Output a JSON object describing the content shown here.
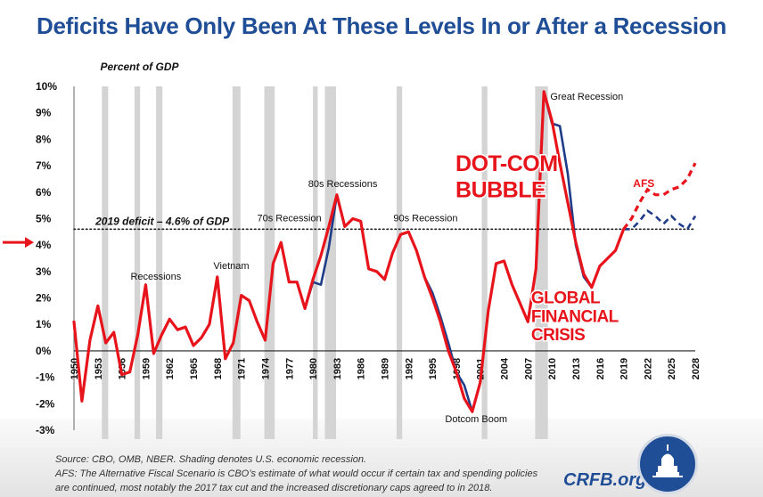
{
  "title": "Deficits Have Only Been At These Levels In or After a Recession",
  "footer": {
    "source_line": "Source: CBO, OMB, NBER. Shading denotes U.S. economic recession.",
    "afs_line_1": "AFS: The Alternative Fiscal Scenario is CBO’s estimate of what would occur if certain tax and spending policies",
    "afs_line_2": "are continued, most notably the 2017 tax cut and the increased discretionary caps agreed to in 2018.",
    "brand": "CRFB.org"
  },
  "colors": {
    "title": "#1f4e96",
    "red": "#e8141b",
    "navy": "#1f3c88",
    "shade": "#d4d4d4",
    "arrow": "#e8141b"
  },
  "chart_data": {
    "type": "line",
    "ylabel": "Percent of GDP",
    "ylim": [
      -3,
      10
    ],
    "xlim": [
      1950,
      2028
    ],
    "y_ticks": [
      -3,
      -2,
      -1,
      0,
      1,
      2,
      3,
      4,
      5,
      6,
      7,
      8,
      9,
      10
    ],
    "y_tick_labels": [
      "-3%",
      "-2%",
      "-1%",
      "0%",
      "1%",
      "2%",
      "3%",
      "4%",
      "5%",
      "6%",
      "7%",
      "8%",
      "9%",
      "10%"
    ],
    "x_ticks": [
      1950,
      1953,
      1956,
      1959,
      1962,
      1965,
      1968,
      1971,
      1974,
      1977,
      1980,
      1983,
      1986,
      1989,
      1992,
      1995,
      1998,
      2001,
      2004,
      2007,
      2010,
      2013,
      2016,
      2019,
      2022,
      2025,
      2028
    ],
    "grid": false,
    "recessions": [
      [
        1953.5,
        1954.3
      ],
      [
        1957.6,
        1958.3
      ],
      [
        1960.3,
        1961.1
      ],
      [
        1969.9,
        1970.9
      ],
      [
        1973.9,
        1975.2
      ],
      [
        1980.0,
        1980.6
      ],
      [
        1981.5,
        1982.9
      ],
      [
        1990.5,
        1991.2
      ],
      [
        2001.2,
        2001.9
      ],
      [
        2007.9,
        2009.5
      ]
    ],
    "reference_line": {
      "y": 4.6,
      "label": "2019 deficit – 4.6% of GDP"
    },
    "series": [
      {
        "name": "",
        "color": "#1f3c88",
        "x": [
          1950,
          1951,
          1952,
          1953,
          1954,
          1955,
          1956,
          1957,
          1958,
          1959,
          1960,
          1961,
          1962,
          1963,
          1964,
          1965,
          1966,
          1967,
          1968,
          1969,
          1970,
          1971,
          1972,
          1973,
          1974,
          1975,
          1976,
          1977,
          1978,
          1979,
          1980,
          1981,
          1982,
          1983,
          1984,
          1985,
          1986,
          1987,
          1988,
          1989,
          1990,
          1991,
          1992,
          1993,
          1994,
          1995,
          1996,
          1997,
          1998,
          1999,
          2000,
          2001,
          2002,
          2003,
          2004,
          2005,
          2006,
          2007,
          2008,
          2009,
          2010,
          2011,
          2012,
          2013,
          2014,
          2015,
          2016,
          2017,
          2018,
          2019,
          2020,
          2021,
          2022,
          2023,
          2024,
          2025,
          2026,
          2027,
          2028
        ],
        "values": [
          1.1,
          -1.9,
          0.4,
          1.7,
          0.3,
          0.7,
          -0.9,
          -0.8,
          0.6,
          2.5,
          -0.1,
          0.6,
          1.2,
          0.8,
          0.9,
          0.2,
          0.5,
          1.0,
          2.8,
          -0.3,
          0.3,
          2.1,
          1.9,
          1.1,
          0.4,
          3.3,
          4.1,
          2.6,
          2.6,
          1.6,
          2.6,
          2.5,
          3.9,
          5.9,
          4.7,
          5.0,
          4.9,
          3.1,
          3.0,
          2.7,
          3.7,
          4.4,
          4.5,
          3.8,
          2.8,
          2.2,
          1.3,
          0.3,
          -0.8,
          -1.3,
          -2.3,
          -1.2,
          1.5,
          3.3,
          3.4,
          2.5,
          1.8,
          1.1,
          3.1,
          9.8,
          8.6,
          8.5,
          6.7,
          4.0,
          2.8,
          2.4,
          3.2,
          3.5,
          3.8,
          4.6,
          4.6,
          4.9,
          5.3,
          5.1,
          4.8,
          5.1,
          4.8,
          4.6,
          5.1
        ],
        "projection_from": 2019
      },
      {
        "name": "AFS",
        "color": "#e8141b",
        "x": [
          1950,
          1951,
          1952,
          1953,
          1954,
          1955,
          1956,
          1957,
          1958,
          1959,
          1960,
          1961,
          1962,
          1963,
          1964,
          1965,
          1966,
          1967,
          1968,
          1969,
          1970,
          1971,
          1972,
          1973,
          1974,
          1975,
          1976,
          1977,
          1978,
          1979,
          1980,
          1981,
          1982,
          1983,
          1984,
          1985,
          1986,
          1987,
          1988,
          1989,
          1990,
          1991,
          1992,
          1993,
          1994,
          1995,
          1996,
          1997,
          1998,
          1999,
          2000,
          2001,
          2002,
          2003,
          2004,
          2005,
          2006,
          2007,
          2008,
          2009,
          2010,
          2011,
          2012,
          2013,
          2014,
          2015,
          2016,
          2017,
          2018,
          2019,
          2020,
          2021,
          2022,
          2023,
          2024,
          2025,
          2026,
          2027,
          2028
        ],
        "values": [
          1.1,
          -1.9,
          0.4,
          1.7,
          0.3,
          0.7,
          -0.9,
          -0.8,
          0.6,
          2.5,
          -0.1,
          0.6,
          1.2,
          0.8,
          0.9,
          0.2,
          0.5,
          1.0,
          2.8,
          -0.3,
          0.3,
          2.1,
          1.9,
          1.1,
          0.4,
          3.3,
          4.1,
          2.6,
          2.6,
          1.6,
          2.7,
          3.6,
          4.7,
          5.9,
          4.7,
          5.0,
          4.9,
          3.1,
          3.0,
          2.7,
          3.7,
          4.4,
          4.5,
          3.8,
          2.8,
          2.0,
          1.1,
          0.0,
          -0.8,
          -1.8,
          -2.3,
          -1.2,
          1.5,
          3.3,
          3.4,
          2.5,
          1.8,
          1.1,
          3.1,
          9.8,
          8.7,
          7.1,
          5.6,
          4.1,
          2.9,
          2.4,
          3.2,
          3.5,
          3.8,
          4.6,
          5.0,
          5.6,
          6.1,
          5.9,
          5.9,
          6.1,
          6.2,
          6.5,
          7.1
        ],
        "projection_from": 2019
      }
    ],
    "annotations": [
      {
        "text": "Percent of GDP",
        "x": 1953.3,
        "y": 10.6,
        "style": "axis-title"
      },
      {
        "text": "Recessions",
        "x": 1957.1,
        "y": 2.7,
        "style": "small"
      },
      {
        "text": "Vietnam",
        "x": 1967.5,
        "y": 3.1,
        "style": "small"
      },
      {
        "text": "70s Recession",
        "x": 1973.0,
        "y": 4.9,
        "style": "small"
      },
      {
        "text": "80s Recessions",
        "x": 1979.4,
        "y": 6.2,
        "style": "small"
      },
      {
        "text": "90s Recession",
        "x": 1990.1,
        "y": 4.9,
        "style": "small"
      },
      {
        "text": "Dotcom Boom",
        "x": 1996.6,
        "y": -2.7,
        "style": "small"
      },
      {
        "text": "Great Recession",
        "x": 2009.8,
        "y": 9.5,
        "style": "small"
      },
      {
        "text": "AFS",
        "x": 2020.2,
        "y": 6.2,
        "style": "series-label"
      },
      {
        "text": "DOT-COM",
        "x": 1997.9,
        "y": 6.8,
        "style": "callout"
      },
      {
        "text": "BUBBLE",
        "x": 1997.9,
        "y": 5.8,
        "style": "callout"
      },
      {
        "text": "GLOBAL",
        "x": 2007.4,
        "y": 1.8,
        "style": "callout-small"
      },
      {
        "text": "FINANCIAL",
        "x": 2007.4,
        "y": 1.1,
        "style": "callout-small"
      },
      {
        "text": "CRISIS",
        "x": 2007.4,
        "y": 0.4,
        "style": "callout-small"
      }
    ],
    "marker": {
      "type": "arrow",
      "y": 4.1
    }
  }
}
